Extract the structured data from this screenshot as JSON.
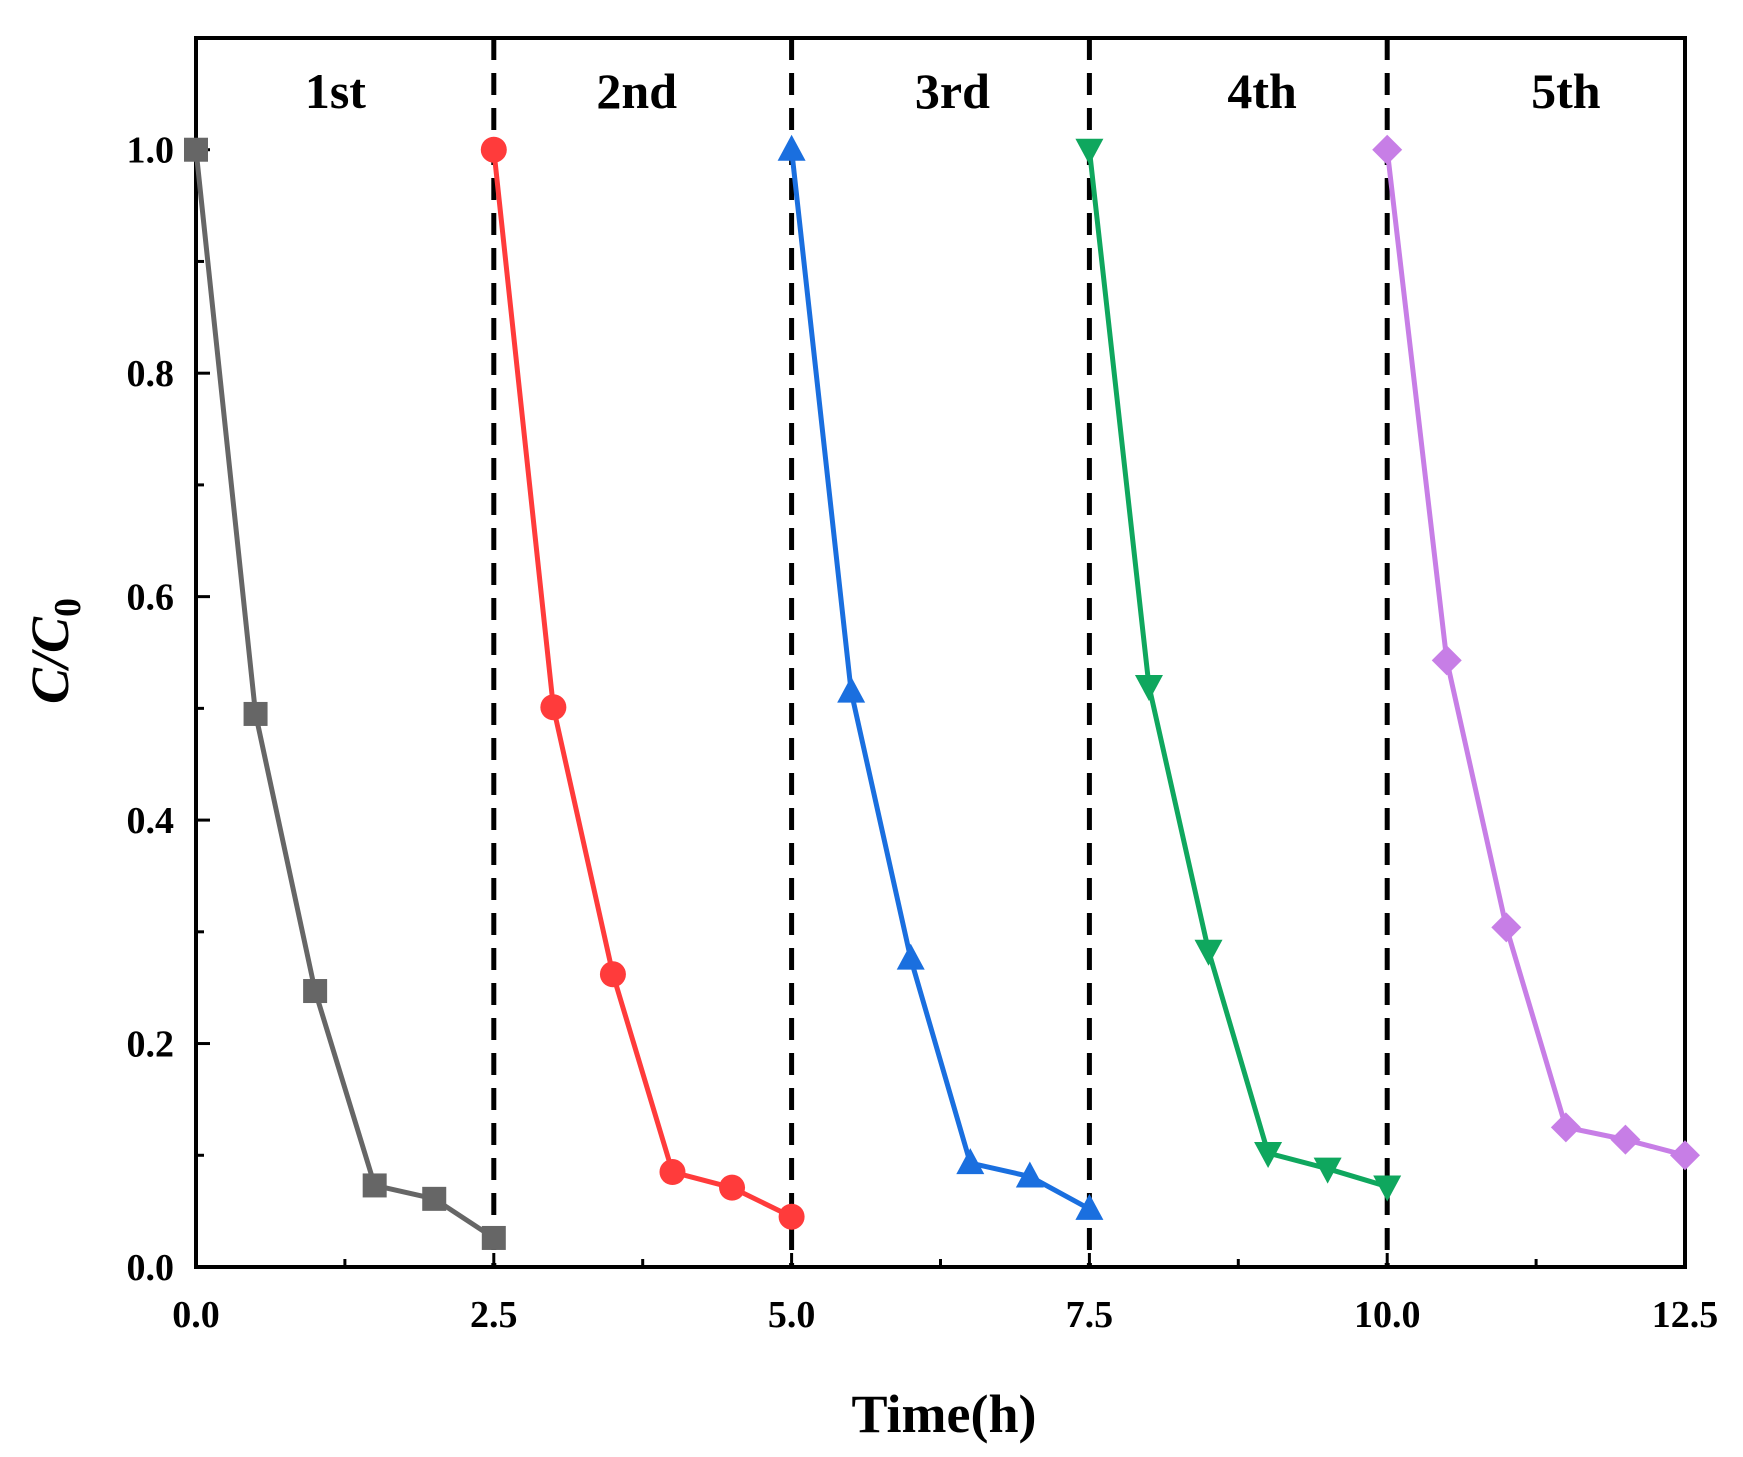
{
  "chart_data": {
    "type": "line",
    "title": "",
    "xlabel": "Time(h)",
    "ylabel": {
      "main": "C/C",
      "subscript": "0"
    },
    "xlim": [
      0,
      12.5
    ],
    "ylim": [
      0,
      1.1
    ],
    "x_ticks": [
      "0.0",
      "2.5",
      "5.0",
      "7.5",
      "10.0",
      "12.5"
    ],
    "y_ticks": [
      "0.0",
      "0.2",
      "0.4",
      "0.6",
      "0.8",
      "1.0"
    ],
    "grid": false,
    "cycle_dividers_x": [
      2.5,
      5.0,
      7.5,
      10.0
    ],
    "cycle_labels": [
      {
        "text": "1st",
        "x": 1.17
      },
      {
        "text": "2nd",
        "x": 3.7
      },
      {
        "text": "3rd",
        "x": 6.35
      },
      {
        "text": "4th",
        "x": 8.95
      },
      {
        "text": "5th",
        "x": 11.5
      }
    ],
    "series": [
      {
        "name": "1st",
        "color": "#666666",
        "marker": "square",
        "x": [
          0.0,
          0.5,
          1.0,
          1.5,
          2.0,
          2.5
        ],
        "values": [
          1.0,
          0.495,
          0.247,
          0.073,
          0.061,
          0.026
        ]
      },
      {
        "name": "2nd",
        "color": "#ff3b3b",
        "marker": "circle",
        "x": [
          2.5,
          3.0,
          3.5,
          4.0,
          4.5,
          5.0
        ],
        "values": [
          1.0,
          0.501,
          0.262,
          0.085,
          0.071,
          0.045
        ]
      },
      {
        "name": "3rd",
        "color": "#1a6fdf",
        "marker": "triangle-up",
        "x": [
          5.0,
          5.5,
          6.0,
          6.5,
          7.0,
          7.5
        ],
        "values": [
          1.0,
          0.515,
          0.276,
          0.093,
          0.081,
          0.052
        ]
      },
      {
        "name": "4th",
        "color": "#0fa75e",
        "marker": "triangle-down",
        "x": [
          7.5,
          8.0,
          8.5,
          9.0,
          9.5,
          10.0
        ],
        "values": [
          1.0,
          0.52,
          0.283,
          0.102,
          0.088,
          0.072
        ]
      },
      {
        "name": "5th",
        "color": "#c77ee6",
        "marker": "diamond",
        "x": [
          10.0,
          10.5,
          11.0,
          11.5,
          12.0,
          12.5
        ],
        "values": [
          1.0,
          0.543,
          0.304,
          0.125,
          0.114,
          0.1
        ]
      }
    ]
  }
}
